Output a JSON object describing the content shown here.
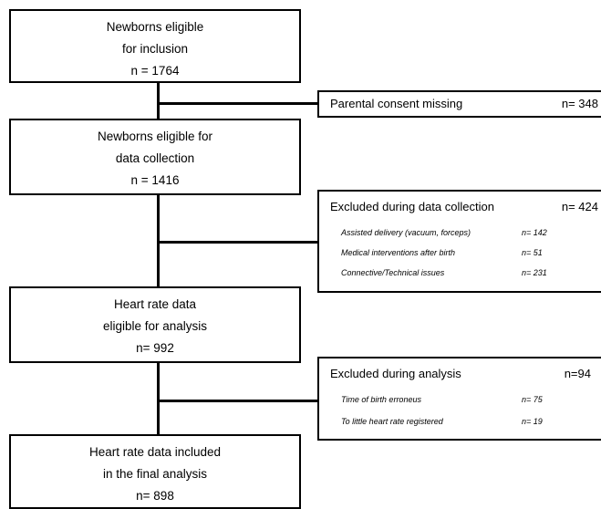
{
  "main_boxes": [
    {
      "line1": "Newborns eligible",
      "line2": "for inclusion",
      "n": "n = 1764"
    },
    {
      "line1": "Newborns eligible  for",
      "line2": "data collection",
      "n": "n = 1416"
    },
    {
      "line1": "Heart rate data",
      "line2": "eligible  for analysis",
      "n": "n= 992"
    },
    {
      "line1": "Heart rate data  included",
      "line2": "in the final analysis",
      "n": "n= 898"
    }
  ],
  "side_boxes": [
    {
      "title": "Parental consent missing",
      "n": "n= 348",
      "items": []
    },
    {
      "title": "Excluded during data collection",
      "n": "n= 424",
      "items": [
        {
          "label": "Assisted delivery (vacuum, forceps)",
          "n": "n= 142"
        },
        {
          "label": "Medical interventions after birth",
          "n": "n= 51"
        },
        {
          "label": "Connective/Technical  issues",
          "n": "n= 231"
        }
      ]
    },
    {
      "title": "Excluded during analysis",
      "n": "n=94",
      "items": [
        {
          "label": "Time of birth erroneus",
          "n": "n= 75"
        },
        {
          "label": "To little heart rate registered",
          "n": "n= 19"
        }
      ]
    }
  ]
}
